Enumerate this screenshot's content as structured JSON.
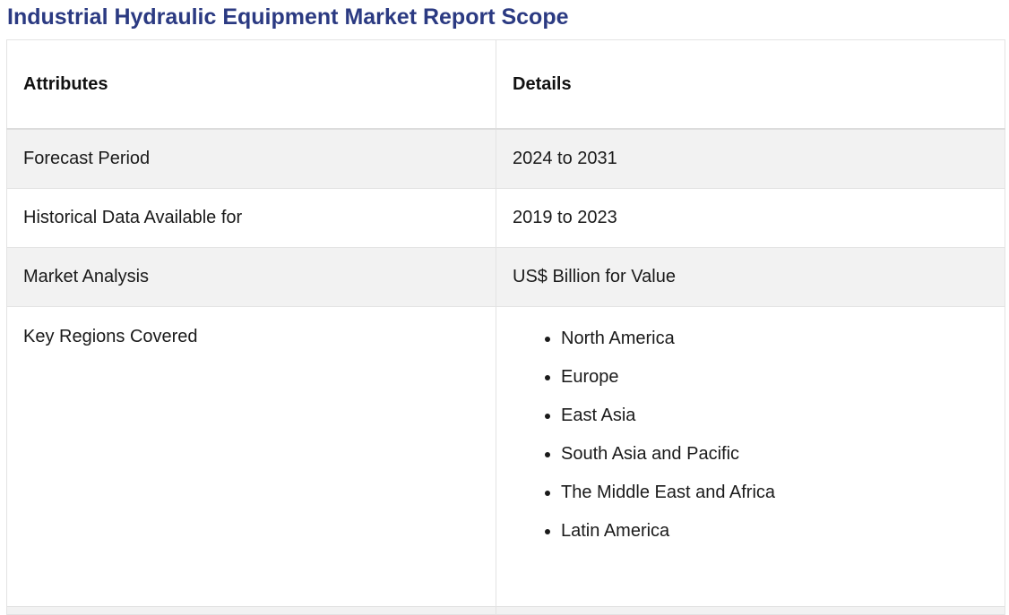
{
  "title": "Industrial Hydraulic Equipment Market Report Scope",
  "table": {
    "headers": {
      "attributes": "Attributes",
      "details": "Details"
    },
    "rows": [
      {
        "attribute": "Forecast Period",
        "detail": "2024 to 2031"
      },
      {
        "attribute": "Historical Data Available for",
        "detail": "2019 to 2023"
      },
      {
        "attribute": "Market Analysis",
        "detail": "US$ Billion for Value"
      }
    ],
    "regions": {
      "attribute": "Key Regions Covered",
      "items": [
        "North America",
        "Europe",
        "East Asia",
        "South Asia and Pacific",
        "The Middle East and Africa",
        "Latin America"
      ]
    }
  },
  "colors": {
    "title": "#2b3a82",
    "shaded_row": "#f2f2f2",
    "border": "#e3e3e3"
  }
}
